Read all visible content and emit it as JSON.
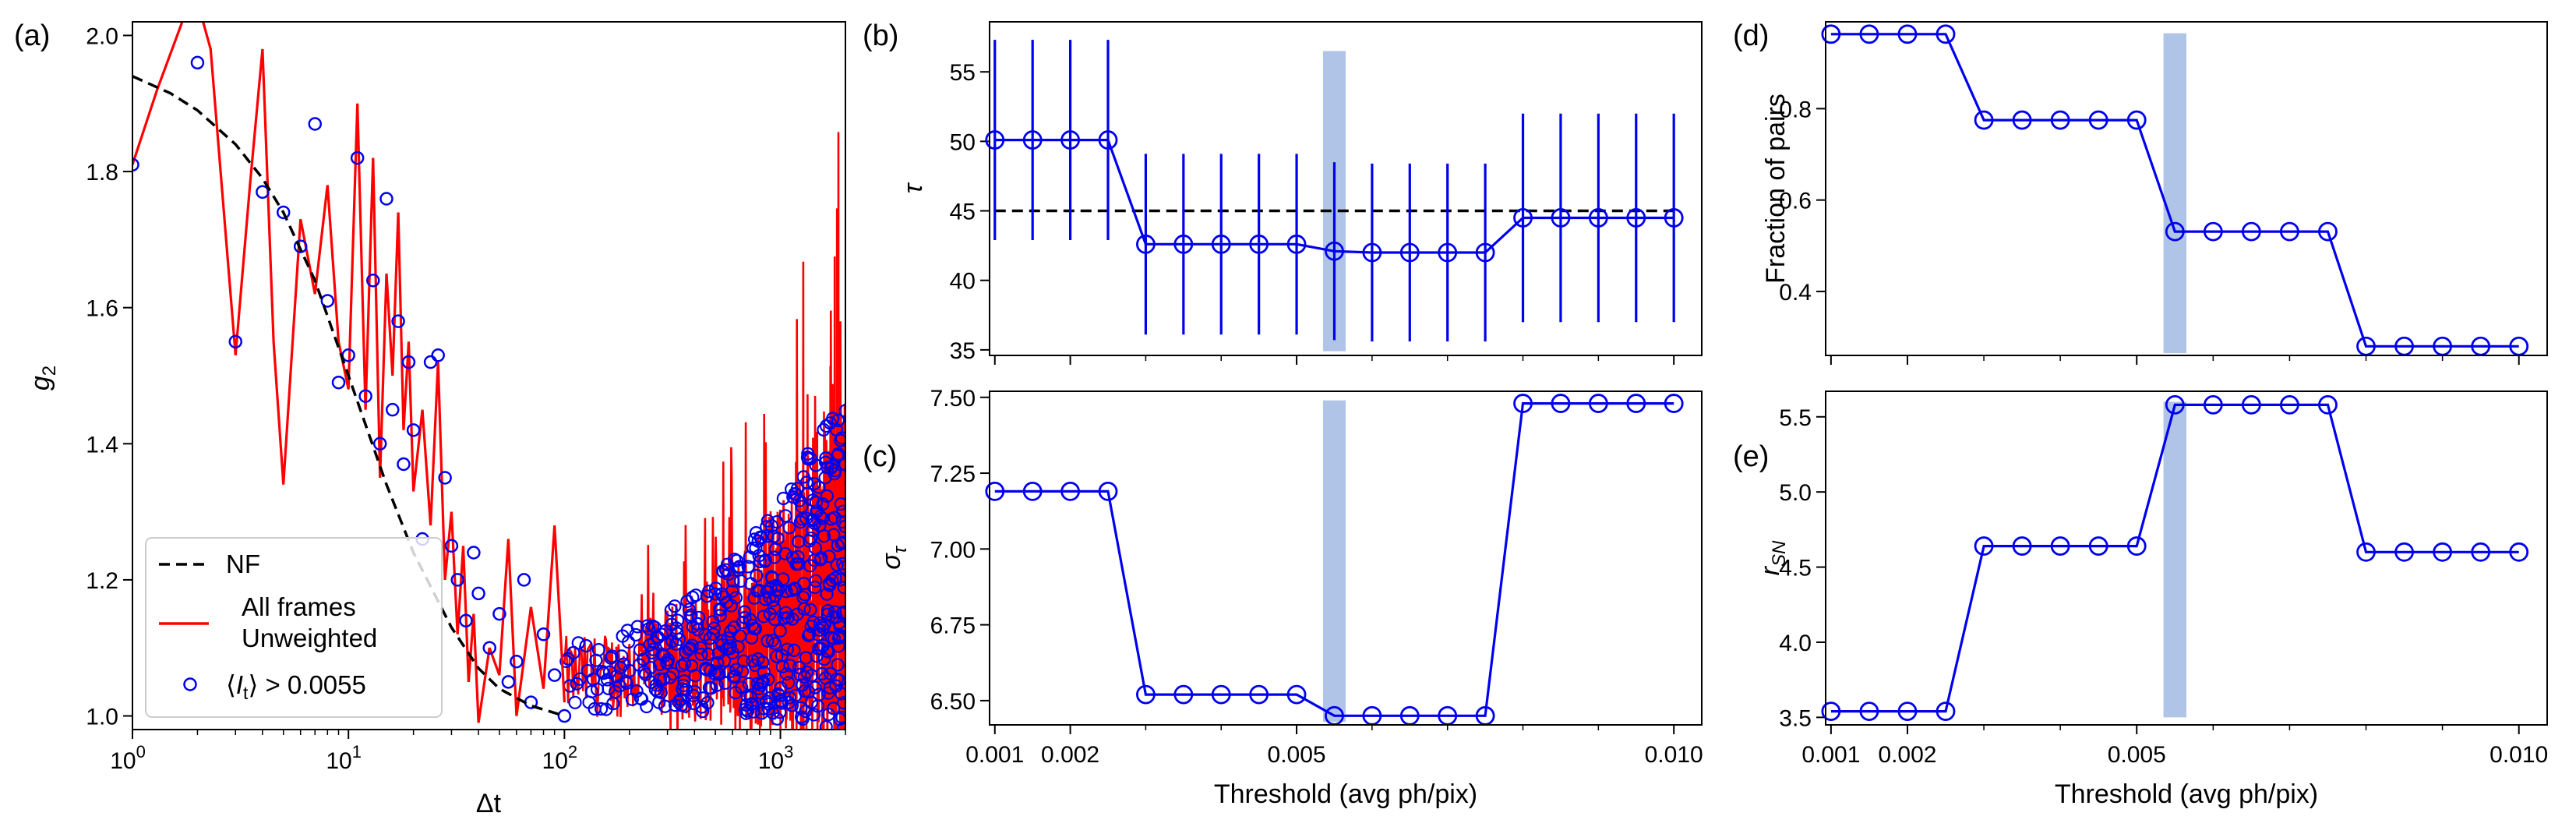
{
  "colors": {
    "blue": "#0000ee",
    "red": "#ff0000",
    "black": "#000000",
    "highlight": "#b0c4e8"
  },
  "chart_data": [
    {
      "id": "a",
      "panel_label": "(a)",
      "type": "line",
      "xscale": "log",
      "xlim": [
        1,
        2000
      ],
      "ylim": [
        0.98,
        2.02
      ],
      "xticks": [
        {
          "v": 1,
          "b": "10",
          "e": "0"
        },
        {
          "v": 10,
          "b": "10",
          "e": "1"
        },
        {
          "v": 100,
          "b": "10",
          "e": "2"
        },
        {
          "v": 1000,
          "b": "10",
          "e": "3"
        }
      ],
      "yticks": [
        "1.0",
        "1.2",
        "1.4",
        "1.6",
        "1.8",
        "2.0"
      ],
      "xlabel": "Δt",
      "ylabel": "g",
      "ylabel_sub": "2",
      "legend_position": "lower-left",
      "legend": {
        "nf": "NF",
        "all_line1": "All frames",
        "all_line2": "Unweighted",
        "sel_pre": "⟨",
        "sel_var": "I",
        "sel_sub": "t",
        "sel_post": "⟩ > 0.0055"
      },
      "nf_curve": {
        "x": [
          1,
          1.5,
          2,
          3,
          4,
          5,
          7,
          10,
          15,
          20,
          30,
          40,
          50,
          70,
          100
        ],
        "y": [
          1.94,
          1.915,
          1.89,
          1.84,
          1.79,
          1.74,
          1.64,
          1.5,
          1.34,
          1.24,
          1.13,
          1.07,
          1.04,
          1.015,
          1.0
        ]
      },
      "unweighted_line": {
        "x": [
          1,
          1.3,
          1.7,
          2,
          2.3,
          3,
          3.5,
          4,
          4.5,
          5,
          6,
          7,
          8,
          9,
          10,
          11,
          12,
          13,
          14,
          15,
          16,
          17,
          18,
          19,
          20,
          22,
          24,
          26,
          28,
          30,
          32,
          34,
          36,
          38,
          40,
          45,
          50,
          55,
          60,
          70,
          80,
          90,
          100
        ],
        "y": [
          1.81,
          1.92,
          2.02,
          2.05,
          1.98,
          1.53,
          1.78,
          1.98,
          1.55,
          1.34,
          1.73,
          1.62,
          1.78,
          1.55,
          1.48,
          1.9,
          1.45,
          1.82,
          1.35,
          1.65,
          1.5,
          1.74,
          1.42,
          1.55,
          1.33,
          1.45,
          1.28,
          1.52,
          1.2,
          1.3,
          1.12,
          1.25,
          1.05,
          1.15,
          0.99,
          1.1,
          1.06,
          1.26,
          1.0,
          1.16,
          1.04,
          1.28,
          1.02
        ]
      },
      "selected_points": {
        "x": [
          1,
          2,
          3,
          4,
          5,
          6,
          7,
          8,
          9,
          10,
          11,
          12,
          13,
          14,
          15,
          16,
          17,
          18,
          19,
          20,
          22,
          24,
          26,
          28,
          30,
          32,
          35,
          38,
          40,
          45,
          50,
          55,
          60,
          65,
          70,
          80,
          90,
          100
        ],
        "y": [
          1.81,
          1.96,
          1.55,
          1.77,
          1.74,
          1.69,
          1.87,
          1.61,
          1.49,
          1.53,
          1.82,
          1.47,
          1.64,
          1.4,
          1.76,
          1.45,
          1.58,
          1.37,
          1.52,
          1.42,
          1.26,
          1.52,
          1.53,
          1.35,
          1.25,
          1.2,
          1.14,
          1.24,
          1.18,
          1.1,
          1.15,
          1.05,
          1.08,
          1.2,
          1.02,
          1.12,
          1.06,
          1.0
        ]
      }
    },
    {
      "id": "b",
      "panel_label": "(b)",
      "type": "line",
      "xlim": [
        0.00093,
        0.01037
      ],
      "ylim": [
        34.6,
        58.6
      ],
      "yticks": [
        35,
        40,
        45,
        50,
        55
      ],
      "ylabel": "τ",
      "reference_line": 45,
      "highlight_x": [
        0.00535,
        0.00565
      ],
      "highlight_y": [
        34.9,
        56.5
      ],
      "x": [
        0.001,
        0.0015,
        0.002,
        0.0025,
        0.003,
        0.0035,
        0.004,
        0.0045,
        0.005,
        0.0055,
        0.006,
        0.0065,
        0.007,
        0.0075,
        0.008,
        0.0085,
        0.009,
        0.0095,
        0.01
      ],
      "y": [
        50.1,
        50.1,
        50.1,
        50.1,
        42.6,
        42.6,
        42.6,
        42.6,
        42.6,
        42.1,
        42.0,
        42.0,
        42.0,
        42.0,
        44.5,
        44.5,
        44.5,
        44.5,
        44.5
      ],
      "err": [
        7.2,
        7.2,
        7.2,
        7.2,
        6.5,
        6.5,
        6.5,
        6.5,
        6.5,
        6.4,
        6.4,
        6.4,
        6.4,
        6.4,
        7.5,
        7.5,
        7.5,
        7.5,
        7.5
      ]
    },
    {
      "id": "c",
      "panel_label": "(c)",
      "type": "line",
      "xlim": [
        0.00093,
        0.01037
      ],
      "ylim": [
        6.42,
        7.52
      ],
      "yticks": [
        "6.50",
        "6.75",
        "7.00",
        "7.25",
        "7.50"
      ],
      "xticks": [
        "0.001",
        "0.002",
        "0.005",
        "0.010"
      ],
      "xlabel": "Threshold (avg ph/pix)",
      "ylabel": "σ",
      "ylabel_sub": "τ",
      "highlight_x": [
        0.00535,
        0.00565
      ],
      "highlight_y": [
        6.43,
        7.49
      ],
      "x": [
        0.001,
        0.0015,
        0.002,
        0.0025,
        0.003,
        0.0035,
        0.004,
        0.0045,
        0.005,
        0.0055,
        0.006,
        0.0065,
        0.007,
        0.0075,
        0.008,
        0.0085,
        0.009,
        0.0095,
        0.01
      ],
      "y": [
        7.19,
        7.19,
        7.19,
        7.19,
        6.52,
        6.52,
        6.52,
        6.52,
        6.52,
        6.45,
        6.45,
        6.45,
        6.45,
        6.45,
        7.48,
        7.48,
        7.48,
        7.48,
        7.48
      ]
    },
    {
      "id": "d",
      "panel_label": "(d)",
      "type": "line",
      "xlim": [
        0.00093,
        0.01037
      ],
      "ylim": [
        0.26,
        0.99
      ],
      "yticks": [
        "0.4",
        "0.6",
        "0.8"
      ],
      "ylabel": "Fraction of pairs",
      "highlight_x": [
        0.00535,
        0.00565
      ],
      "highlight_y": [
        0.265,
        0.965
      ],
      "x": [
        0.001,
        0.0015,
        0.002,
        0.0025,
        0.003,
        0.0035,
        0.004,
        0.0045,
        0.005,
        0.0055,
        0.006,
        0.0065,
        0.007,
        0.0075,
        0.008,
        0.0085,
        0.009,
        0.0095,
        0.01
      ],
      "y": [
        0.963,
        0.963,
        0.963,
        0.963,
        0.775,
        0.775,
        0.775,
        0.775,
        0.775,
        0.531,
        0.531,
        0.531,
        0.531,
        0.531,
        0.28,
        0.28,
        0.28,
        0.28,
        0.28
      ]
    },
    {
      "id": "e",
      "panel_label": "(e)",
      "type": "line",
      "xlim": [
        0.00093,
        0.01037
      ],
      "ylim": [
        3.45,
        5.67
      ],
      "yticks": [
        "3.5",
        "4.0",
        "4.5",
        "5.0",
        "5.5"
      ],
      "xticks": [
        "0.001",
        "0.002",
        "0.005",
        "0.010"
      ],
      "xlabel": "Threshold (avg ph/pix)",
      "ylabel": "r",
      "ylabel_sub": "SN",
      "highlight_x": [
        0.00535,
        0.00565
      ],
      "highlight_y": [
        3.5,
        5.6
      ],
      "x": [
        0.001,
        0.0015,
        0.002,
        0.0025,
        0.003,
        0.0035,
        0.004,
        0.0045,
        0.005,
        0.0055,
        0.006,
        0.0065,
        0.007,
        0.0075,
        0.008,
        0.0085,
        0.009,
        0.0095,
        0.01
      ],
      "y": [
        3.54,
        3.54,
        3.54,
        3.54,
        4.64,
        4.64,
        4.64,
        4.64,
        4.64,
        5.58,
        5.58,
        5.58,
        5.58,
        5.58,
        4.6,
        4.6,
        4.6,
        4.6,
        4.6
      ]
    }
  ]
}
